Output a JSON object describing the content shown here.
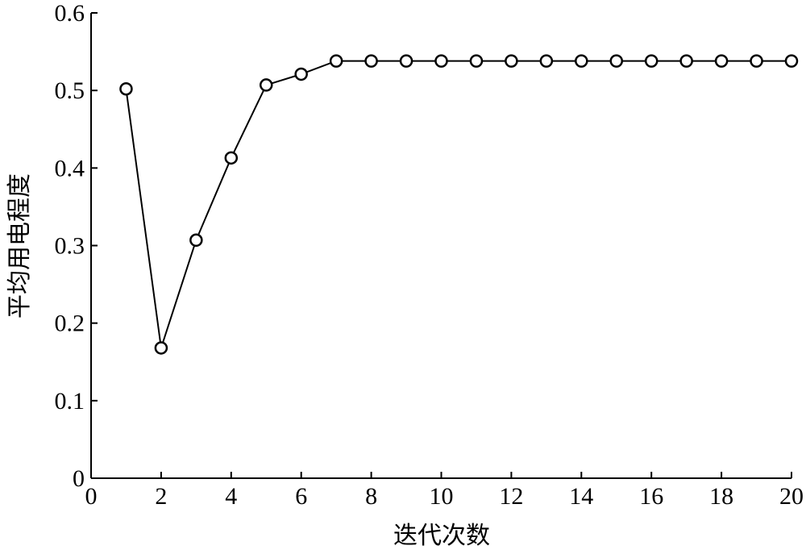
{
  "chart_data": {
    "type": "line",
    "title": "",
    "xlabel": "迭代次数",
    "ylabel": "平均用电程度",
    "xlim": [
      0,
      20
    ],
    "ylim": [
      0,
      0.6
    ],
    "xticks": [
      0,
      2,
      4,
      6,
      8,
      10,
      12,
      14,
      16,
      18,
      20
    ],
    "xtick_labels": [
      "0",
      "2",
      "4",
      "6",
      "8",
      "10",
      "12",
      "14",
      "16",
      "18",
      "20"
    ],
    "yticks": [
      0,
      0.1,
      0.2,
      0.3,
      0.4,
      0.5,
      0.6
    ],
    "ytick_labels": [
      "0",
      "0.1",
      "0.2",
      "0.3",
      "0.4",
      "0.5",
      "0.6"
    ],
    "grid": false,
    "marker": "circle-open",
    "line_color": "#000000",
    "series": [
      {
        "x": [
          1,
          2,
          3,
          4,
          5,
          6,
          7,
          8,
          9,
          10,
          11,
          12,
          13,
          14,
          15,
          16,
          17,
          18,
          19,
          20
        ],
        "values": [
          0.502,
          0.168,
          0.307,
          0.413,
          0.507,
          0.521,
          0.538,
          0.538,
          0.538,
          0.538,
          0.538,
          0.538,
          0.538,
          0.538,
          0.538,
          0.538,
          0.538,
          0.538,
          0.538,
          0.538
        ]
      }
    ]
  }
}
